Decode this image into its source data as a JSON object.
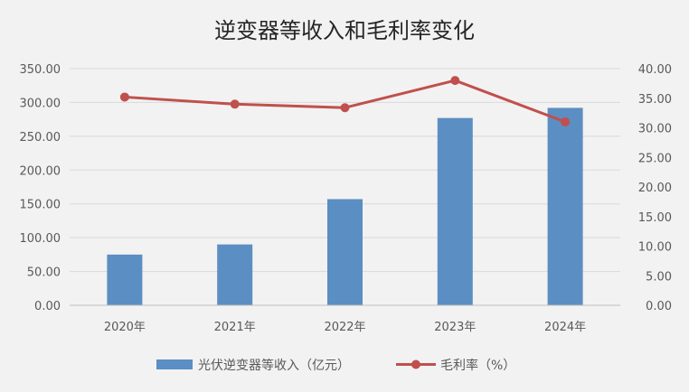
{
  "colors": {
    "background": "#f2f2f2",
    "bar": "#5b8ec2",
    "line": "#c0504d",
    "grid": "#d9d9d9",
    "axis_text": "#595959"
  },
  "chart_data": {
    "type": "bar",
    "title": "逆变器等收入和毛利率变化",
    "categories": [
      "2020年",
      "2021年",
      "2022年",
      "2023年",
      "2024年"
    ],
    "y_left": {
      "ylim": [
        0,
        350
      ],
      "ticks": [
        "0.00",
        "50.00",
        "100.00",
        "150.00",
        "200.00",
        "250.00",
        "300.00",
        "350.00"
      ]
    },
    "y_right": {
      "ylim": [
        0,
        40
      ],
      "ticks": [
        "0.00",
        "5.00",
        "10.00",
        "15.00",
        "20.00",
        "25.00",
        "30.00",
        "35.00",
        "40.00"
      ]
    },
    "series": [
      {
        "name": "光伏逆变器等收入（亿元）",
        "type": "bar",
        "axis": "left",
        "values": [
          75,
          90,
          157,
          277,
          292
        ]
      },
      {
        "name": "毛利率（%）",
        "type": "line",
        "axis": "right",
        "values": [
          35.2,
          34.0,
          33.4,
          38.0,
          31.0
        ]
      }
    ],
    "grid": true,
    "legend": "bottom"
  }
}
